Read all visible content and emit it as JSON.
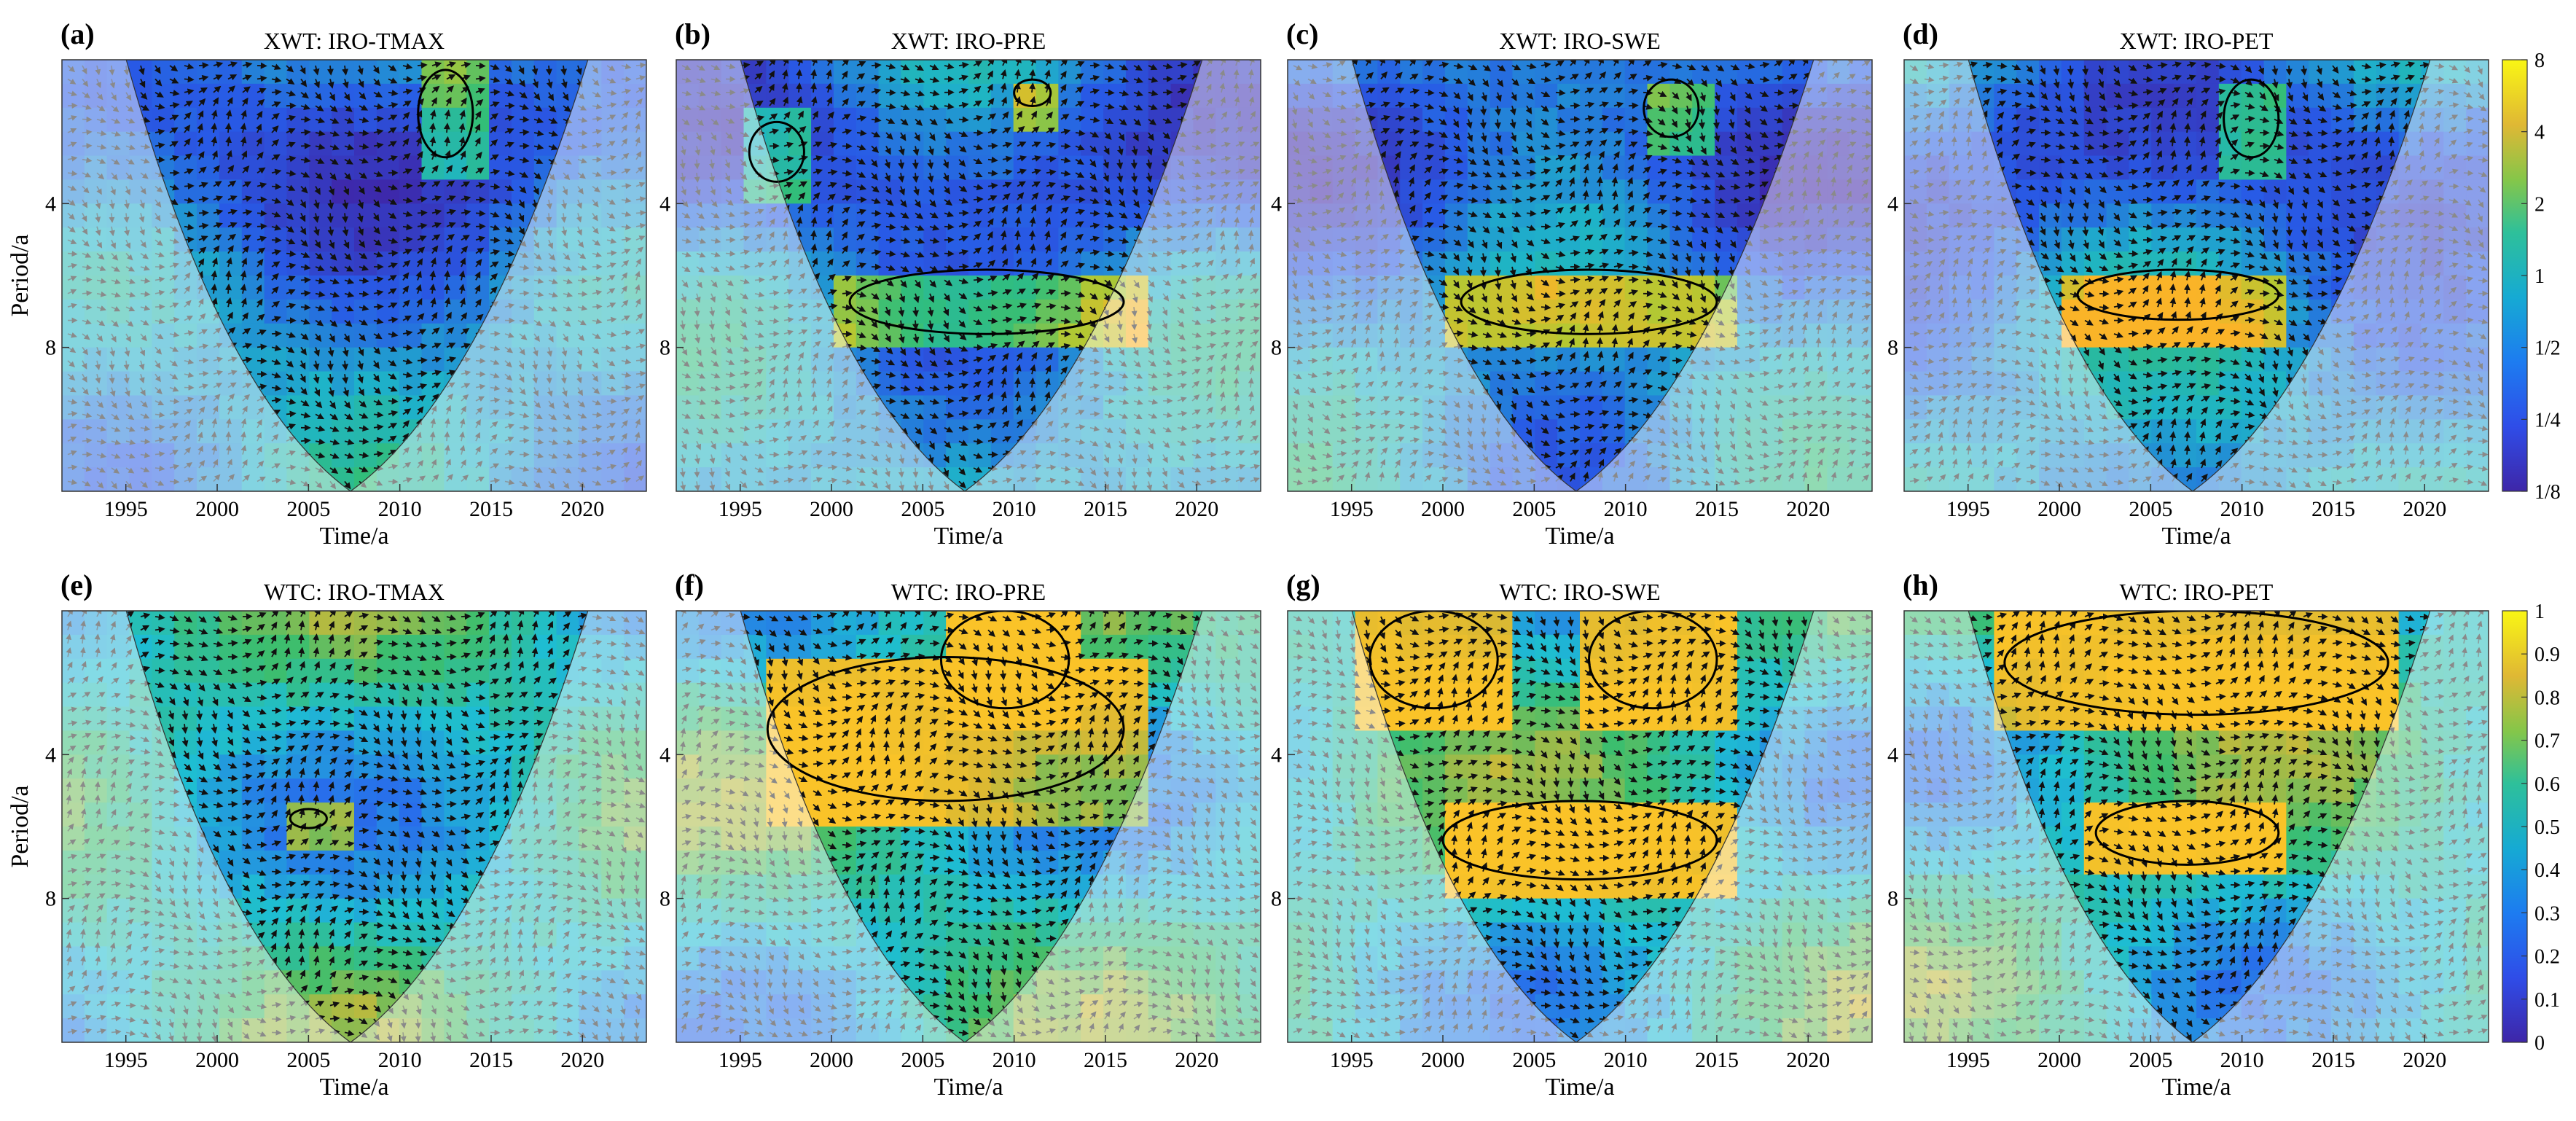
{
  "figure": {
    "xlabel": "Time/a",
    "ylabel": "Period/a",
    "x_ticks": [
      1995,
      2000,
      2005,
      2010,
      2015,
      2020
    ],
    "xlim": [
      1991.5,
      2023.5
    ],
    "y_ticks": [
      4,
      8
    ],
    "y_scale": "log2",
    "ylim": [
      2,
      16
    ]
  },
  "colorbars": {
    "xwt": {
      "tick_labels": [
        "8",
        "4",
        "2",
        "1",
        "1/2",
        "1/4",
        "1/8"
      ],
      "tick_values": [
        8,
        4,
        2,
        1,
        0.5,
        0.25,
        0.125
      ]
    },
    "wtc": {
      "tick_labels": [
        "1",
        "0.9",
        "0.8",
        "0.7",
        "0.6",
        "0.5",
        "0.4",
        "0.3",
        "0.2",
        "0.1",
        "0"
      ],
      "tick_values": [
        1,
        0.9,
        0.8,
        0.7,
        0.6,
        0.5,
        0.4,
        0.3,
        0.2,
        0.1,
        0
      ]
    }
  },
  "chart_data": [
    {
      "type": "heatmap",
      "panel": "(a)",
      "title": "XWT: IRO-TMAX",
      "method": "XWT",
      "xlabel": "Time/a",
      "ylabel": "Period/a",
      "significant_regions": [
        {
          "time_range": [
            2011,
            2014
          ],
          "period_range": [
            2.1,
            3.2
          ]
        }
      ]
    },
    {
      "type": "heatmap",
      "panel": "(b)",
      "title": "XWT: IRO-PRE",
      "method": "XWT",
      "xlabel": "Time/a",
      "ylabel": "Period/a",
      "significant_regions": [
        {
          "time_range": [
            1995.5,
            1998.5
          ],
          "period_range": [
            2.7,
            3.6
          ]
        },
        {
          "time_range": [
            2010,
            2012
          ],
          "period_range": [
            2.2,
            2.5
          ]
        },
        {
          "time_range": [
            2001,
            2016
          ],
          "period_range": [
            5.5,
            7.5
          ]
        }
      ]
    },
    {
      "type": "heatmap",
      "panel": "(c)",
      "title": "XWT: IRO-SWE",
      "method": "XWT",
      "xlabel": "Time/a",
      "ylabel": "Period/a",
      "significant_regions": [
        {
          "time_range": [
            2011,
            2014
          ],
          "period_range": [
            2.2,
            2.9
          ]
        },
        {
          "time_range": [
            2001,
            2015
          ],
          "period_range": [
            5.5,
            7.5
          ]
        }
      ]
    },
    {
      "type": "heatmap",
      "panel": "(d)",
      "title": "XWT: IRO-PET",
      "method": "XWT",
      "xlabel": "Time/a",
      "ylabel": "Period/a",
      "significant_regions": [
        {
          "time_range": [
            2009,
            2012
          ],
          "period_range": [
            2.2,
            3.2
          ]
        },
        {
          "time_range": [
            2001,
            2012
          ],
          "period_range": [
            5.5,
            7
          ]
        }
      ]
    },
    {
      "type": "heatmap",
      "panel": "(e)",
      "title": "WTC: IRO-TMAX",
      "method": "WTC",
      "xlabel": "Time/a",
      "ylabel": "Period/a",
      "significant_regions": [
        {
          "time_range": [
            2004,
            2006
          ],
          "period_range": [
            5.2,
            5.7
          ]
        }
      ]
    },
    {
      "type": "heatmap",
      "panel": "(f)",
      "title": "WTC: IRO-PRE",
      "method": "WTC",
      "xlabel": "Time/a",
      "ylabel": "Period/a",
      "significant_regions": [
        {
          "time_range": [
            2006,
            2013
          ],
          "period_range": [
            2,
            3.2
          ]
        },
        {
          "time_range": [
            1996.5,
            2016
          ],
          "period_range": [
            2.5,
            5
          ]
        }
      ]
    },
    {
      "type": "heatmap",
      "panel": "(g)",
      "title": "WTC: IRO-SWE",
      "method": "WTC",
      "xlabel": "Time/a",
      "ylabel": "Period/a",
      "significant_regions": [
        {
          "time_range": [
            1996,
            2003
          ],
          "period_range": [
            2,
            3.2
          ]
        },
        {
          "time_range": [
            2008,
            2015
          ],
          "period_range": [
            2,
            3.2
          ]
        },
        {
          "time_range": [
            2000,
            2015
          ],
          "period_range": [
            5,
            7.3
          ]
        }
      ]
    },
    {
      "type": "heatmap",
      "panel": "(h)",
      "title": "WTC: IRO-PET",
      "method": "WTC",
      "xlabel": "Time/a",
      "ylabel": "Period/a",
      "significant_regions": [
        {
          "time_range": [
            1997,
            2018
          ],
          "period_range": [
            2,
            3.3
          ]
        },
        {
          "time_range": [
            2002,
            2012
          ],
          "period_range": [
            5,
            6.8
          ]
        }
      ]
    }
  ]
}
